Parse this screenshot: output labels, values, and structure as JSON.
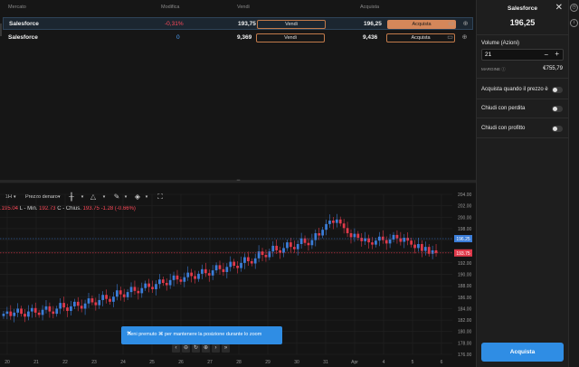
{
  "table": {
    "headers": {
      "market": "Mercato",
      "change": "Modifica",
      "sell": "Vendi",
      "buy": "Acquista"
    },
    "rows": [
      {
        "name": "Salesforce",
        "change": "-0,31%",
        "sell": "193,75",
        "sell_btn": "Vendi",
        "buy": "196,25",
        "buy_btn": "Acquista",
        "selected": true
      },
      {
        "name": "Salesforce",
        "change": "0",
        "sell": "9,369",
        "sell_btn": "Vendi",
        "buy": "9,436",
        "buy_btn": "Acquista",
        "selected": false
      }
    ]
  },
  "chart_toolbar": {
    "interval": "1H",
    "price_type": "Prezzo denaro"
  },
  "ohlc": {
    "text_open": ".195.04",
    "low_label": "L - Min.",
    "low": "192.73",
    "close_label": "C - Chius.",
    "close": "193.75",
    "change": "-1.28 (-0.66%)"
  },
  "chart_data": {
    "type": "candlestick",
    "x_tick_labels": [
      "20",
      "21",
      "22",
      "23",
      "24",
      "25",
      "26",
      "27",
      "28",
      "29",
      "30",
      "31",
      "Apr",
      "4",
      "5",
      "6"
    ],
    "y_tick_labels": [
      "204.00",
      "202.00",
      "200.00",
      "198.00",
      "196.00",
      "194.00",
      "192.00",
      "190.00",
      "188.00",
      "186.00",
      "184.00",
      "182.00",
      "180.00",
      "178.00",
      "176.00"
    ],
    "ylim": [
      176,
      204
    ],
    "buy_line": 196.25,
    "sell_line": 193.75,
    "buy_label": "196.25",
    "sell_label": "193.75",
    "colors": {
      "up": "#3b7dd8",
      "down": "#e0394a",
      "buy_line": "#3b7dd8",
      "sell_line": "#e0394a"
    },
    "closes": [
      183.1,
      183.5,
      182.7,
      183.3,
      184.0,
      183.1,
      182.6,
      183.5,
      184.1,
      183.3,
      182.9,
      183.8,
      184.4,
      183.5,
      183.1,
      184.0,
      185.0,
      184.2,
      183.6,
      184.4,
      185.2,
      184.5,
      184.0,
      184.9,
      185.8,
      185.1,
      184.6,
      185.5,
      186.4,
      185.7,
      185.2,
      186.1,
      187.2,
      186.5,
      186.0,
      186.9,
      187.8,
      187.1,
      186.7,
      187.6,
      188.4,
      187.8,
      187.4,
      188.3,
      189.1,
      188.5,
      188.1,
      189.0,
      189.8,
      189.1,
      188.7,
      189.5,
      190.3,
      189.7,
      189.2,
      190.1,
      190.9,
      190.2,
      189.8,
      190.7,
      191.6,
      190.9,
      190.4,
      191.3,
      192.2,
      191.5,
      191.1,
      192.0,
      193.0,
      192.3,
      191.9,
      192.8,
      194.0,
      193.4,
      193.0,
      194.0,
      195.0,
      194.2,
      193.8,
      194.6,
      195.6,
      194.8,
      194.4,
      195.3,
      196.3,
      195.5,
      195.1,
      196.0,
      197.2,
      196.8,
      197.8,
      198.8,
      199.4,
      199.0,
      199.6,
      198.9,
      198.1,
      197.2,
      196.5,
      197.1,
      196.4,
      195.8,
      196.3,
      195.6,
      195.2,
      195.9,
      196.6,
      196.0,
      195.4,
      196.1,
      196.9,
      196.3,
      195.7,
      196.4,
      195.9,
      195.2,
      194.6,
      195.3,
      194.1,
      194.8,
      193.6,
      194.2,
      193.75
    ],
    "markers": [
      "Vendi",
      "Acquista"
    ]
  },
  "zoom_tip": {
    "text": "Tieni premuto ⌘ per mantenere la posizione durante lo zoom"
  },
  "order_panel": {
    "title": "Salesforce",
    "price": "196,25",
    "volume_label": "Volume (Azioni)",
    "volume_value": "21",
    "margin_label": "MARGINE",
    "margin_value": "€755,79",
    "opt_buy_when": "Acquista quando il prezzo è",
    "opt_stop_loss": "Chiudi con perdita",
    "opt_take_profit": "Chiudi con profitto",
    "submit": "Acquista"
  }
}
